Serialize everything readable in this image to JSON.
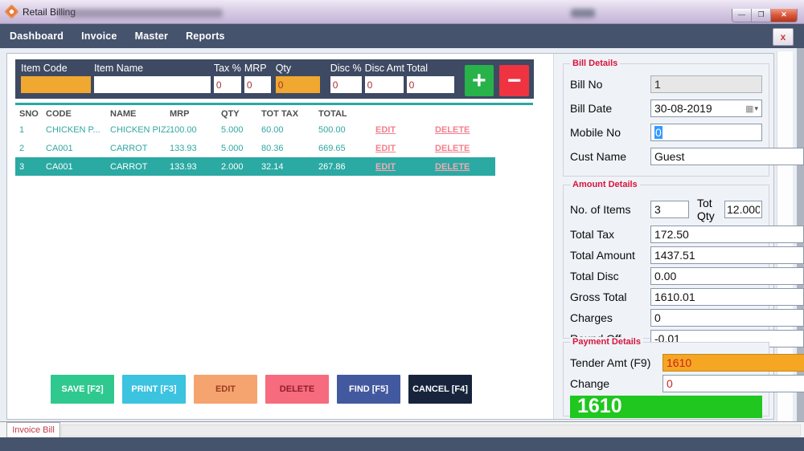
{
  "window": {
    "title": "Retail Billing"
  },
  "icons": {
    "minimize": "—",
    "maximize": "❐",
    "close": "✕",
    "menu_close": "x",
    "datepicker_grid": "▦",
    "datepicker_caret": "▾",
    "add": "+",
    "remove": "−"
  },
  "menu": {
    "items": [
      "Dashboard",
      "Invoice",
      "Master",
      "Reports"
    ]
  },
  "entry": {
    "fields": [
      {
        "label": "Item Code",
        "value": ""
      },
      {
        "label": "Item Name",
        "value": ""
      },
      {
        "label": "Tax %",
        "value": "0"
      },
      {
        "label": "MRP",
        "value": "0"
      },
      {
        "label": "Qty",
        "value": "0"
      },
      {
        "label": "Disc %",
        "value": "0"
      },
      {
        "label": "Disc Amt",
        "value": "0"
      },
      {
        "label": "Total",
        "value": "0"
      }
    ]
  },
  "grid": {
    "headers": [
      "SNO",
      "CODE",
      "NAME",
      "MRP",
      "QTY",
      "TOT TAX",
      "TOTAL"
    ],
    "edit_label": "EDIT",
    "delete_label": "DELETE",
    "rows": [
      {
        "sno": "1",
        "code": "CHICKEN P...",
        "name": "CHICKEN PIZZA",
        "mrp": "100.00",
        "qty": "5.000",
        "tot_tax": "60.00",
        "total": "500.00",
        "selected": false
      },
      {
        "sno": "2",
        "code": "CA001",
        "name": "CARROT",
        "mrp": "133.93",
        "qty": "5.000",
        "tot_tax": "80.36",
        "total": "669.65",
        "selected": false
      },
      {
        "sno": "3",
        "code": "CA001",
        "name": "CARROT",
        "mrp": "133.93",
        "qty": "2.000",
        "tot_tax": "32.14",
        "total": "267.86",
        "selected": true
      }
    ]
  },
  "actions": {
    "save": "SAVE [F2]",
    "print": "PRINT [F3]",
    "edit": "EDIT",
    "delete": "DELETE",
    "find": "FIND [F5]",
    "cancel": "CANCEL [F4]"
  },
  "bill_details": {
    "title": "Bill Details",
    "bill_no_label": "Bill No",
    "bill_no": "1",
    "bill_date_label": "Bill Date",
    "bill_date": "30-08-2019",
    "mobile_no_label": "Mobile No",
    "mobile_no": "0",
    "cust_name_label": "Cust Name",
    "cust_name": "Guest"
  },
  "amount_details": {
    "title": "Amount Details",
    "no_of_items_label": "No. of Items",
    "no_of_items": "3",
    "tot_qty_label": "Tot Qty",
    "tot_qty": "12.000",
    "rows": [
      {
        "label": "Total Tax",
        "value": "172.50"
      },
      {
        "label": "Total Amount",
        "value": "1437.51"
      },
      {
        "label": "Total Disc",
        "value": "0.00"
      },
      {
        "label": "Gross Total",
        "value": "1610.01"
      },
      {
        "label": "Charges",
        "value": "0"
      },
      {
        "label": "Round Off",
        "value": "-0.01"
      }
    ]
  },
  "payment_details": {
    "title": "Payment Details",
    "tender_label": "Tender Amt (F9)",
    "tender": "1610",
    "change_label": "Change",
    "change": "0",
    "display": "1610"
  },
  "footer": {
    "tab": "Invoice Bill"
  },
  "colors": {
    "accent_teal": "#2BA8A2",
    "menu_bar": "#46536D",
    "entry_panel": "#3E4A63",
    "orange_field": "#F0A830",
    "add_green": "#27B24A",
    "remove_red": "#EF3340",
    "save_green": "#2FC98F",
    "print_cyan": "#3BC3E0",
    "edit_orange": "#F5A470",
    "delete_pink": "#F76B7E",
    "find_blue": "#43599F",
    "cancel_navy": "#18243C",
    "group_title_red": "#D8143C",
    "tender_orange": "#F5A623",
    "display_green": "#1FC71F",
    "link_pink": "#F2808D"
  }
}
